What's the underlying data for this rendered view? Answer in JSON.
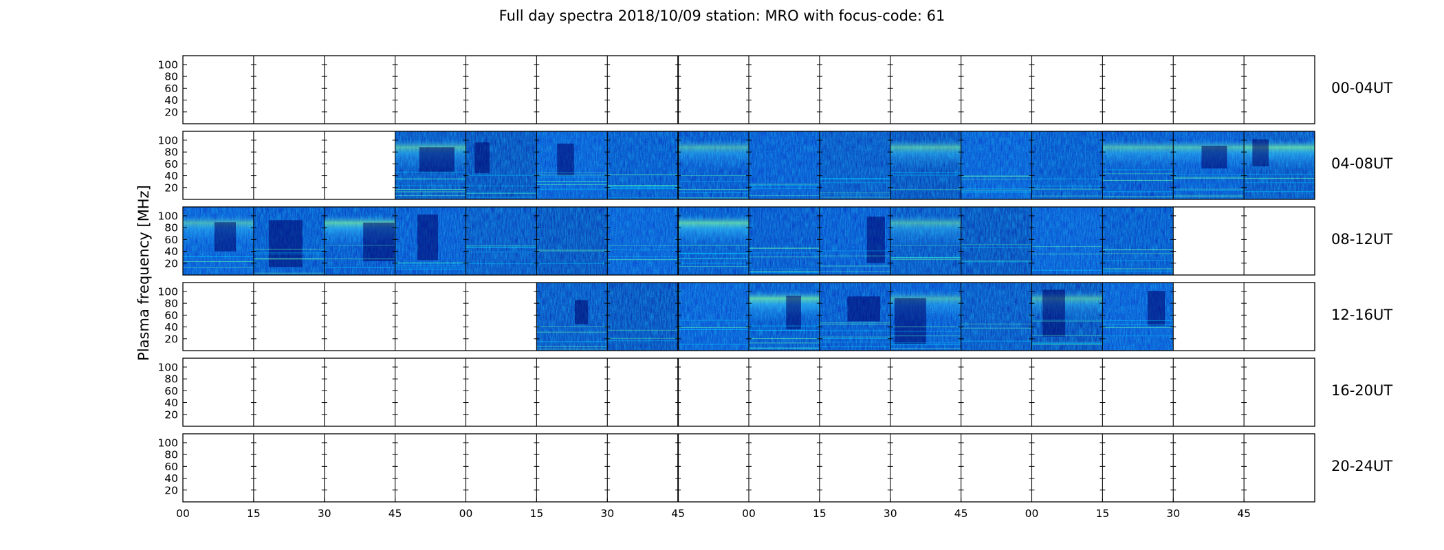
{
  "chart_data": {
    "type": "heatmap",
    "title": "Full day spectra 2018/10/09 station: MRO with focus-code: 61",
    "ylabel": "Plasma frequency [MHz]",
    "xlabel": "",
    "ylim": [
      0,
      115
    ],
    "yticks": [
      20,
      40,
      60,
      80,
      100
    ],
    "xtick_labels": [
      "00",
      "15",
      "30",
      "45",
      "00",
      "15",
      "30",
      "45",
      "00",
      "15",
      "30",
      "45",
      "00",
      "15",
      "30",
      "45"
    ],
    "colormap": "jet",
    "minutes_per_row": 240,
    "segment_minutes": 15,
    "rows": [
      {
        "label": "00-04UT",
        "segments": [
          0,
          0,
          0,
          0,
          0,
          0,
          0,
          0,
          0,
          0,
          0,
          0,
          0,
          0,
          0,
          0
        ]
      },
      {
        "label": "04-08UT",
        "segments": [
          0,
          0,
          0,
          1,
          1,
          1,
          1,
          1,
          1,
          1,
          1,
          1,
          1,
          1,
          1,
          1
        ]
      },
      {
        "label": "08-12UT",
        "segments": [
          1,
          1,
          1,
          1,
          1,
          1,
          1,
          1,
          1,
          1,
          1,
          1,
          1,
          1,
          0,
          0
        ]
      },
      {
        "label": "12-16UT",
        "segments": [
          0,
          0,
          0,
          0,
          0,
          1,
          1,
          1,
          1,
          1,
          1,
          1,
          1,
          1,
          0,
          0
        ]
      },
      {
        "label": "16-20UT",
        "segments": [
          0,
          0,
          0,
          0,
          0,
          0,
          0,
          0,
          0,
          0,
          0,
          0,
          0,
          0,
          0,
          0
        ]
      },
      {
        "label": "20-24UT",
        "segments": [
          0,
          0,
          0,
          0,
          0,
          0,
          0,
          0,
          0,
          0,
          0,
          0,
          0,
          0,
          0,
          0
        ]
      }
    ]
  }
}
